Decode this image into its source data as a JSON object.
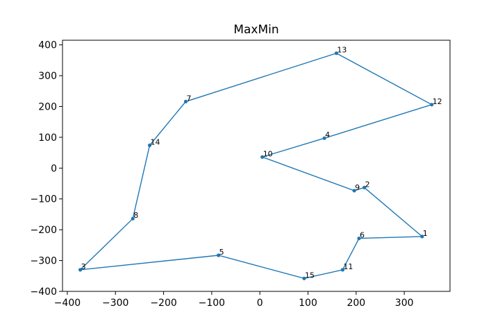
{
  "chart_data": {
    "type": "line",
    "title": "MaxMin",
    "xlabel": "",
    "ylabel": "",
    "xlim": [
      -410,
      395
    ],
    "ylim": [
      -400,
      415
    ],
    "xticks": [
      -400,
      -300,
      -200,
      -100,
      0,
      100,
      200,
      300
    ],
    "yticks": [
      -400,
      -300,
      -200,
      -100,
      0,
      100,
      200,
      300,
      400
    ],
    "grid": false,
    "color": "#1f77b4",
    "points": [
      {
        "label": "1",
        "x": 337,
        "y": -222
      },
      {
        "label": "6",
        "x": 206,
        "y": -228
      },
      {
        "label": "11",
        "x": 172,
        "y": -330
      },
      {
        "label": "15",
        "x": 92,
        "y": -358
      },
      {
        "label": "5",
        "x": -86,
        "y": -283
      },
      {
        "label": "3",
        "x": -373,
        "y": -330
      },
      {
        "label": "8",
        "x": -264,
        "y": -164
      },
      {
        "label": "14",
        "x": -229,
        "y": 74
      },
      {
        "label": "7",
        "x": -154,
        "y": 216
      },
      {
        "label": "13",
        "x": 159,
        "y": 373
      },
      {
        "label": "12",
        "x": 357,
        "y": 206
      },
      {
        "label": "4",
        "x": 134,
        "y": 97
      },
      {
        "label": "10",
        "x": 5,
        "y": 36
      },
      {
        "label": "9",
        "x": 196,
        "y": -73
      },
      {
        "label": "2",
        "x": 217,
        "y": -63
      },
      {
        "label": "1",
        "x": 337,
        "y": -222
      }
    ]
  }
}
